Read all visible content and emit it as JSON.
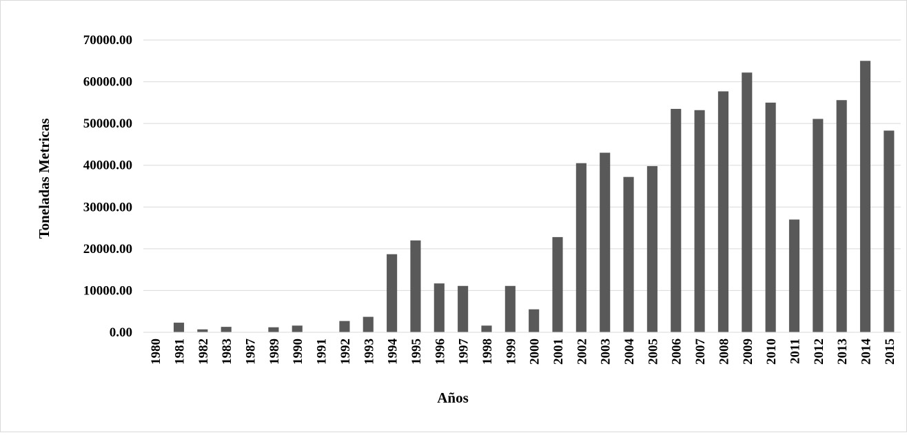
{
  "chart_data": {
    "type": "bar",
    "title": "",
    "xlabel": "Años",
    "ylabel": "Toneladas Metricas",
    "ylim": [
      0,
      70000
    ],
    "yticks": [
      "0.00",
      "10000.00",
      "20000.00",
      "30000.00",
      "40000.00",
      "50000.00",
      "60000.00",
      "70000.00"
    ],
    "ytick_values": [
      0,
      10000,
      20000,
      30000,
      40000,
      50000,
      60000,
      70000
    ],
    "categories": [
      "1980",
      "1981",
      "1982",
      "1983",
      "1987",
      "1989",
      "1990",
      "1991",
      "1992",
      "1993",
      "1994",
      "1995",
      "1996",
      "1997",
      "1998",
      "1999",
      "2000",
      "2001",
      "2002",
      "2003",
      "2004",
      "2005",
      "2006",
      "2007",
      "2008",
      "2009",
      "2010",
      "2011",
      "2012",
      "2013",
      "2014",
      "2015"
    ],
    "values": [
      0,
      2300,
      700,
      1300,
      0,
      1200,
      1600,
      0,
      2700,
      3700,
      18700,
      22000,
      11700,
      11100,
      1600,
      11100,
      5500,
      22800,
      40500,
      43000,
      37200,
      39800,
      53500,
      53200,
      57700,
      62200,
      55000,
      27000,
      51100,
      55600,
      65000,
      48300
    ],
    "bar_color": "#595959",
    "grid_color": "#d9d9d9",
    "grid": true,
    "legend": "none"
  }
}
